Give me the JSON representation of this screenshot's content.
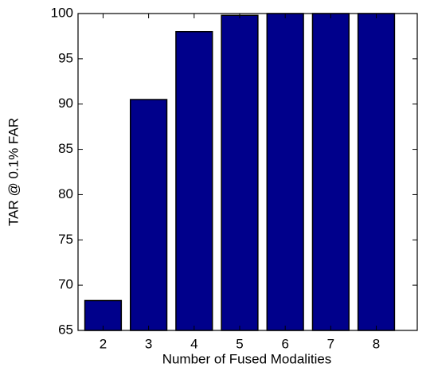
{
  "chart_data": {
    "type": "bar",
    "x_label": "Number of Fused Modalities",
    "y_label": "TAR @ 0.1% FAR",
    "x": [
      2,
      3,
      4,
      5,
      6,
      7,
      8
    ],
    "values": [
      68.3,
      90.5,
      98,
      99.8,
      100,
      100,
      100
    ],
    "color": "#00008b",
    "xlim": [
      1.45,
      8.9
    ],
    "xticks": [
      2,
      3,
      4,
      5,
      6,
      7,
      8
    ],
    "ylim": [
      65,
      100
    ],
    "yticks": [
      65,
      70,
      75,
      80,
      85,
      90,
      95,
      100
    ],
    "grid": false
  }
}
